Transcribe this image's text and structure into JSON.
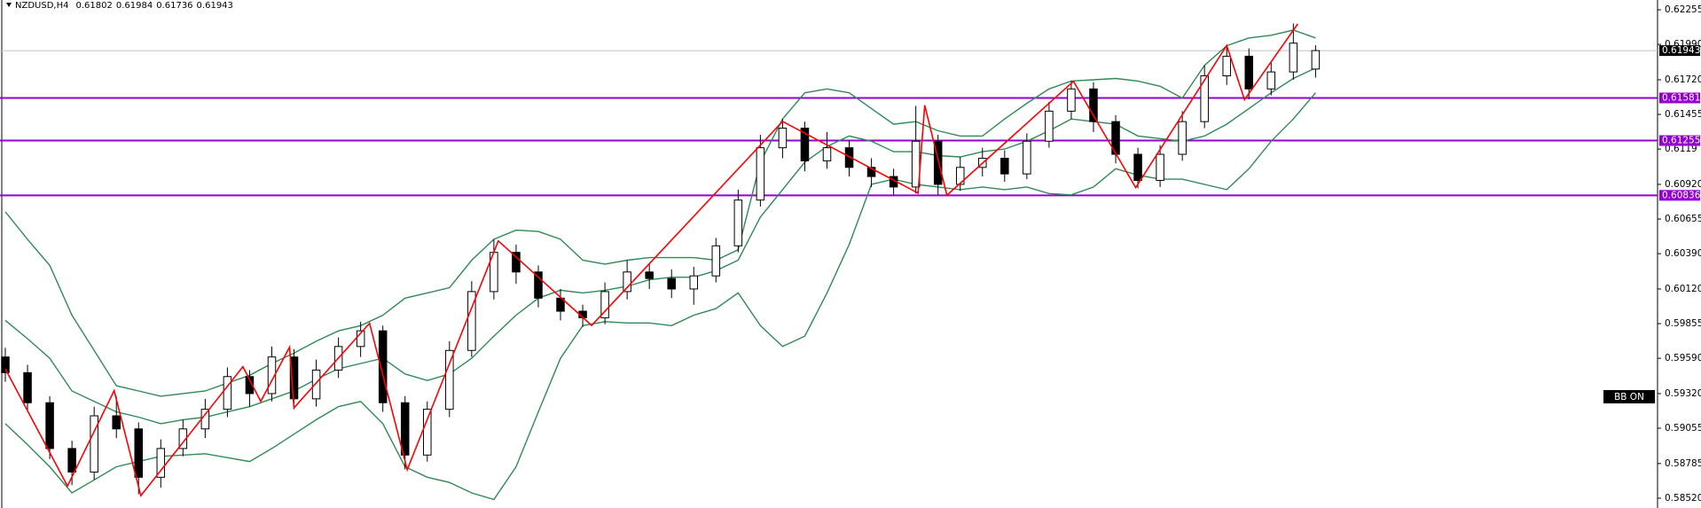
{
  "header": {
    "symbol": "NZDUSD,H4"
  },
  "indicator_label": "BB ON",
  "chart_data": {
    "type": "candlestick",
    "xlim": [
      -0.24,
      74.4
    ],
    "ylim": [
      0.58445,
      0.6233
    ],
    "yticks": [
      0.62255,
      {
        "value": 0.6199,
        "label": "0.61990"
      },
      {
        "value": 0.6172,
        "label": "0.61720"
      },
      0.61455,
      0.6119,
      {
        "value": 0.6092,
        "label": "0.60920"
      },
      0.60655,
      {
        "value": 0.6039,
        "label": "0.60390"
      },
      {
        "value": 0.6012,
        "label": "0.60120"
      },
      0.59855,
      {
        "value": 0.5959,
        "label": "0.59590"
      },
      {
        "value": 0.5932,
        "label": "0.59320"
      },
      0.59055,
      0.58785,
      {
        "value": 0.5852,
        "label": "0.58520"
      }
    ],
    "open": [
      0.596,
      0.5948,
      0.5925,
      0.589,
      0.5872,
      0.5915,
      0.5905,
      0.5868,
      0.589,
      0.5905,
      0.592,
      0.5945,
      0.5932,
      0.596,
      0.5928,
      0.595,
      0.5968,
      0.598,
      0.5925,
      0.5885,
      0.592,
      0.5965,
      0.601,
      0.604,
      0.6025,
      0.6005,
      0.5995,
      0.599,
      0.601,
      0.6025,
      0.602,
      0.6012,
      0.6022,
      0.6045,
      0.608,
      0.612,
      0.6135,
      0.611,
      0.612,
      0.6105,
      0.6098,
      0.609,
      0.6125,
      0.6092,
      0.6105,
      0.6112,
      0.61,
      0.6125,
      0.6148,
      0.6165,
      0.614,
      0.6115,
      0.6095,
      0.6115,
      0.614,
      0.6175,
      0.619,
      0.6165,
      0.6178,
      0.61802
    ],
    "high": [
      0.5967,
      0.5954,
      0.593,
      0.5896,
      0.5922,
      0.593,
      0.591,
      0.5897,
      0.5912,
      0.5928,
      0.5952,
      0.595,
      0.5968,
      0.5966,
      0.5958,
      0.5975,
      0.5987,
      0.5984,
      0.593,
      0.5926,
      0.5972,
      0.6018,
      0.605,
      0.6046,
      0.603,
      0.6012,
      0.6,
      0.6017,
      0.6034,
      0.6032,
      0.6027,
      0.6029,
      0.6051,
      0.6088,
      0.613,
      0.6142,
      0.614,
      0.6132,
      0.6126,
      0.6112,
      0.6104,
      0.6152,
      0.613,
      0.6113,
      0.612,
      0.6118,
      0.6131,
      0.6155,
      0.6171,
      0.617,
      0.6145,
      0.612,
      0.6122,
      0.6148,
      0.6183,
      0.6198,
      0.6196,
      0.6186,
      0.6215,
      0.61984
    ],
    "low": [
      0.5941,
      0.5918,
      0.5882,
      0.5862,
      0.5866,
      0.5898,
      0.5855,
      0.586,
      0.5884,
      0.5898,
      0.5914,
      0.5922,
      0.5926,
      0.592,
      0.5922,
      0.5944,
      0.596,
      0.5918,
      0.5874,
      0.588,
      0.5914,
      0.596,
      0.6004,
      0.6016,
      0.5998,
      0.5988,
      0.5983,
      0.5985,
      0.6004,
      0.6012,
      0.6005,
      0.6,
      0.6017,
      0.604,
      0.6075,
      0.6112,
      0.6102,
      0.6104,
      0.6098,
      0.609,
      0.6084,
      0.6085,
      0.6084,
      0.6087,
      0.6098,
      0.6094,
      0.6096,
      0.612,
      0.6142,
      0.6132,
      0.6108,
      0.6089,
      0.609,
      0.611,
      0.6135,
      0.6168,
      0.6157,
      0.616,
      0.6172,
      0.61736
    ],
    "close": [
      0.5948,
      0.5925,
      0.589,
      0.5872,
      0.5915,
      0.5905,
      0.5868,
      0.589,
      0.5905,
      0.592,
      0.5945,
      0.5932,
      0.596,
      0.5928,
      0.595,
      0.5968,
      0.598,
      0.5925,
      0.5885,
      0.592,
      0.5965,
      0.601,
      0.604,
      0.6025,
      0.6005,
      0.5995,
      0.599,
      0.601,
      0.6025,
      0.602,
      0.6012,
      0.6022,
      0.6045,
      0.608,
      0.612,
      0.6135,
      0.611,
      0.612,
      0.6105,
      0.6098,
      0.609,
      0.6125,
      0.6092,
      0.6105,
      0.6112,
      0.61,
      0.6125,
      0.6148,
      0.6165,
      0.614,
      0.6115,
      0.6095,
      0.6115,
      0.614,
      0.6175,
      0.619,
      0.6165,
      0.6178,
      0.62,
      0.61943
    ],
    "bull_color": "#ffffff",
    "bear_color": "#000000",
    "candle_outline": "#000000",
    "bb_upper": [
      0.6071,
      0.605,
      0.603,
      0.5992,
      0.5965,
      0.5938,
      0.5934,
      0.593,
      0.5932,
      0.5934,
      0.594,
      0.5946,
      0.5955,
      0.5963,
      0.5972,
      0.598,
      0.5984,
      0.5992,
      0.6005,
      0.6009,
      0.6013,
      0.6034,
      0.605,
      0.6057,
      0.6056,
      0.605,
      0.6034,
      0.6031,
      0.6034,
      0.6036,
      0.6036,
      0.6036,
      0.6034,
      0.6042,
      0.6109,
      0.6142,
      0.6162,
      0.6165,
      0.6162,
      0.615,
      0.6138,
      0.614,
      0.6133,
      0.6129,
      0.6129,
      0.6142,
      0.6154,
      0.6165,
      0.6171,
      0.6172,
      0.6173,
      0.6171,
      0.6167,
      0.6158,
      0.6183,
      0.6198,
      0.6204,
      0.6206,
      0.621,
      0.6204
    ],
    "bb_middle": [
      0.5988,
      0.5974,
      0.5959,
      0.5934,
      0.5926,
      0.5918,
      0.5914,
      0.5909,
      0.5912,
      0.5914,
      0.5918,
      0.5922,
      0.5928,
      0.5934,
      0.5943,
      0.5951,
      0.5955,
      0.5959,
      0.5947,
      0.5942,
      0.5947,
      0.5959,
      0.5976,
      0.5992,
      0.6005,
      0.6011,
      0.6009,
      0.6011,
      0.6014,
      0.6019,
      0.6021,
      0.6021,
      0.6026,
      0.6034,
      0.6067,
      0.6088,
      0.6109,
      0.6121,
      0.6129,
      0.6125,
      0.6117,
      0.6117,
      0.6114,
      0.6113,
      0.6117,
      0.6119,
      0.6125,
      0.6133,
      0.6142,
      0.614,
      0.6138,
      0.6129,
      0.6127,
      0.6125,
      0.6129,
      0.6138,
      0.615,
      0.6162,
      0.6173,
      0.6181
    ],
    "bb_lower": [
      0.5909,
      0.5893,
      0.5876,
      0.5856,
      0.5866,
      0.5876,
      0.588,
      0.5884,
      0.5885,
      0.5886,
      0.5883,
      0.588,
      0.589,
      0.5901,
      0.5912,
      0.5922,
      0.5926,
      0.5909,
      0.5876,
      0.5868,
      0.5864,
      0.5856,
      0.5851,
      0.5876,
      0.5918,
      0.5959,
      0.5984,
      0.5987,
      0.5986,
      0.5986,
      0.5984,
      0.5992,
      0.5997,
      0.6009,
      0.5984,
      0.5968,
      0.5976,
      0.6009,
      0.6046,
      0.6092,
      0.6096,
      0.6092,
      0.609,
      0.6088,
      0.609,
      0.6088,
      0.609,
      0.6085,
      0.6084,
      0.609,
      0.6104,
      0.6099,
      0.6096,
      0.6096,
      0.6092,
      0.6088,
      0.6104,
      0.6125,
      0.6142,
      0.6162
    ],
    "bb_color": "#2e8b57",
    "zigzag": {
      "color": "#ff0000",
      "x": [
        0,
        2.8,
        4.9,
        6.1,
        10.7,
        11.5,
        12.8,
        13.0,
        16.4,
        18.1,
        22.2,
        26.4,
        35.0,
        41.1,
        41.4,
        42.4,
        48.1,
        50.9,
        55.0,
        55.8,
        58.2
      ],
      "y": [
        0.59509,
        0.58613,
        0.59343,
        0.58539,
        0.59526,
        0.5926,
        0.59675,
        0.59211,
        0.59858,
        0.58738,
        0.60488,
        0.59841,
        0.61401,
        0.60853,
        0.61525,
        0.60837,
        0.61708,
        0.60895,
        0.61982,
        0.61567,
        0.62147
      ]
    },
    "levels": [
      0.61581,
      0.61255,
      0.60836
    ],
    "level_color": "#9400d3",
    "price_line_color": "#c0c0c0"
  }
}
